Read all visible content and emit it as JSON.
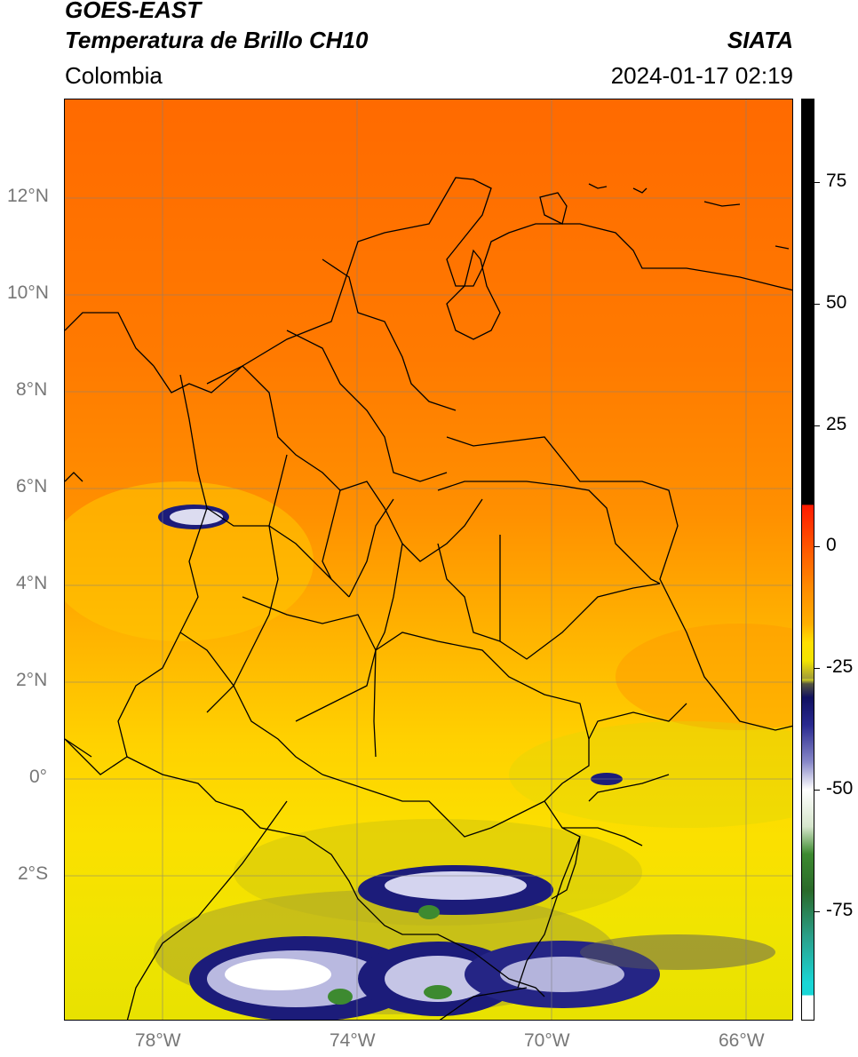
{
  "header": {
    "satellite": "GOES-EAST",
    "product": "Temperatura de Brillo CH10",
    "agency": "SIATA",
    "region": "Colombia",
    "datetime": "2024-01-17 02:19"
  },
  "map": {
    "lat_labels": [
      "12°N",
      "10°N",
      "8°N",
      "6°N",
      "4°N",
      "2°N",
      "0°",
      "2°S"
    ],
    "lon_labels": [
      "78°W",
      "74°W",
      "70°W",
      "66°W"
    ],
    "grid": true
  },
  "colorbar": {
    "tick_labels": [
      "75",
      "50",
      "25",
      "0",
      "-25",
      "-50",
      "-75"
    ],
    "colors": {
      "black": "#000000",
      "red": "#e8220a",
      "orange": "#ff8a00",
      "yellow": "#ffe800",
      "olive": "#8a8a2a",
      "navy": "#141470",
      "white": "#f5f5f5",
      "green": "#3d8a30",
      "cyan": "#19d6d6"
    }
  }
}
